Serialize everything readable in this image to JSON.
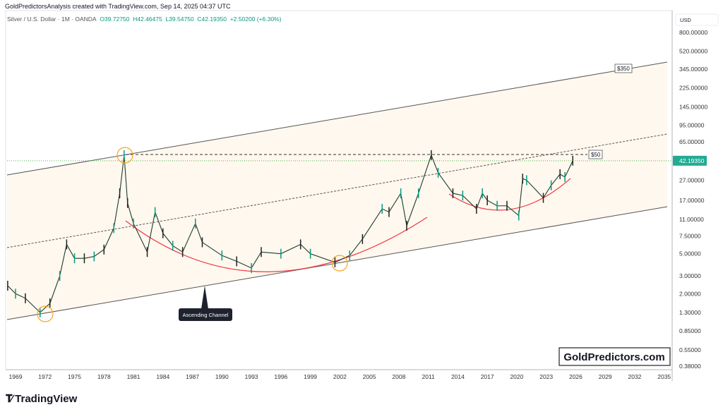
{
  "header": {
    "credit": "GoldPredictorsAnalysis created with TradingView.com, Sep 14, 2025 04:37 UTC",
    "symbol": "Silver / U.S. Dollar · 1M · OANDA",
    "open": "O39.72750",
    "high": "H42.46475",
    "low": "L39.54750",
    "close": "C42.19350",
    "change": "+2.50200 (+6.30%)"
  },
  "chart_data": {
    "type": "line",
    "title": "Silver / U.S. Dollar · 1M · OANDA",
    "yscale": "log",
    "currency_label": "USD",
    "ylim": [
      0.38,
      800
    ],
    "xlim": [
      1969,
      2035
    ],
    "y_ticks": [
      "800.00000",
      "520.00000",
      "345.00000",
      "225.00000",
      "145.00000",
      "95.00000",
      "65.00000",
      "27.00000",
      "17.00000",
      "11.00000",
      "7.50000",
      "5.00000",
      "3.00000",
      "2.00000",
      "1.30000",
      "0.85000",
      "0.55000",
      "0.38000"
    ],
    "y_tick_values": [
      800,
      520,
      345,
      225,
      145,
      95,
      65,
      27,
      17,
      11,
      7.5,
      5,
      3,
      2,
      1.3,
      0.85,
      0.55,
      0.38
    ],
    "x_ticks": [
      "1969",
      "1972",
      "1975",
      "1978",
      "1981",
      "1984",
      "1987",
      "1990",
      "1993",
      "1996",
      "1999",
      "2002",
      "2005",
      "2008",
      "2011",
      "2014",
      "2017",
      "2020",
      "2023",
      "2026",
      "2029",
      "2032",
      "2035"
    ],
    "last_price": "42.19350",
    "last_price_value": 42.1935,
    "series": [
      {
        "name": "Silver price",
        "x": [
          1968.2,
          1969,
          1970,
          1971.5,
          1972.5,
          1973.5,
          1974.2,
          1975,
          1976,
          1977,
          1978,
          1979,
          1979.6,
          1980.05,
          1980.4,
          1981,
          1982.4,
          1983.2,
          1984,
          1985,
          1986,
          1987.3,
          1988,
          1990,
          1991.5,
          1993,
          1994,
          1996,
          1998,
          1999,
          2001.5,
          2003,
          2004.3,
          2006.3,
          2007,
          2008.2,
          2008.8,
          2010,
          2011.3,
          2012,
          2013.5,
          2014.5,
          2015.9,
          2016.5,
          2017,
          2018,
          2019,
          2020.2,
          2020.6,
          2021,
          2022.7,
          2023.5,
          2024.4,
          2024.9,
          2025.7
        ],
        "y": [
          2.4,
          2.0,
          1.8,
          1.3,
          1.6,
          3,
          6.2,
          4.5,
          4.5,
          4.7,
          5.5,
          9,
          20,
          48,
          16,
          10,
          5.2,
          13,
          8,
          6,
          5.2,
          10,
          6.5,
          4.8,
          4.2,
          3.6,
          5.2,
          5.0,
          6.2,
          5,
          4.1,
          4.8,
          7,
          14,
          13,
          20,
          9.5,
          20,
          48,
          32,
          20,
          19,
          14,
          20,
          17,
          15,
          15,
          12,
          28,
          27,
          18,
          24,
          31,
          29,
          42.2
        ]
      }
    ],
    "annotations": {
      "upper_label": "$350",
      "mid_label": "$50",
      "callout": "Ascending Channel",
      "watermark": "GoldPredictors.com"
    },
    "colors": {
      "up": "#089981",
      "channel_fill": "#fff8ee",
      "arc": "#f23645",
      "circle": "#f5a623",
      "price_line": "#4caf50"
    }
  },
  "footer": {
    "brand": "TradingView"
  }
}
